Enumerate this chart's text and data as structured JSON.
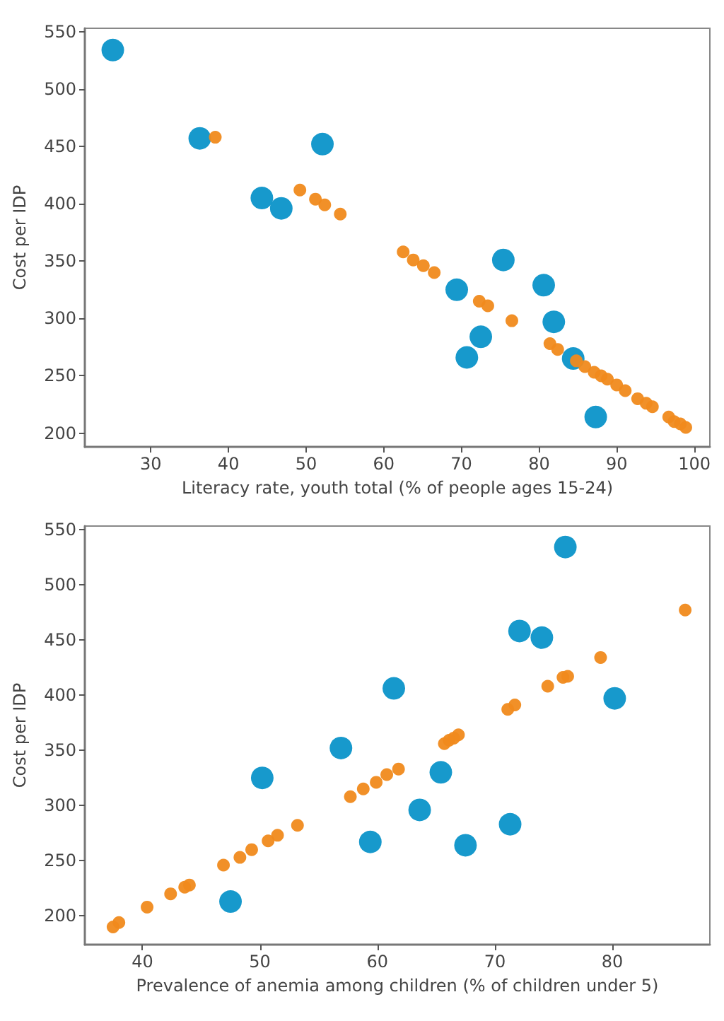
{
  "chart_data": [
    {
      "type": "scatter",
      "xlabel": "Literacy rate, youth total (% of people ages 15-24)",
      "ylabel": "Cost per IDP",
      "xlim": [
        21.5,
        102
      ],
      "ylim": [
        188,
        553
      ],
      "xticks": [
        30,
        40,
        50,
        60,
        70,
        80,
        90,
        100
      ],
      "yticks": [
        200,
        250,
        300,
        350,
        400,
        450,
        500,
        550
      ],
      "marker": "circle",
      "series": [
        {
          "color": "#0b93c9",
          "x": [
            25.1,
            36.3,
            52.1,
            44.3,
            46.8,
            69.4,
            75.4,
            80.6,
            81.9,
            72.5,
            70.7,
            84.4,
            87.3
          ],
          "values": [
            534,
            457,
            452,
            405,
            396,
            325,
            351,
            329,
            297,
            284,
            266,
            265,
            214
          ]
        },
        {
          "color": "#f08a1c",
          "x": [
            38.3,
            49.2,
            51.2,
            52.4,
            54.4,
            62.5,
            63.8,
            65.1,
            66.5,
            72.3,
            73.4,
            76.5,
            81.4,
            82.4,
            84.8,
            85.9,
            87.1,
            88.0,
            88.8,
            90.0,
            91.1,
            92.7,
            93.8,
            94.6,
            96.7,
            97.4,
            98.2,
            98.9
          ],
          "values": [
            458,
            412,
            404,
            399,
            391,
            358,
            351,
            346,
            340,
            315,
            311,
            298,
            278,
            273,
            263,
            258,
            253,
            250,
            247,
            242,
            237,
            230,
            226,
            223,
            214,
            210,
            208,
            205
          ]
        }
      ]
    },
    {
      "type": "scatter",
      "xlabel": "Prevalence of anemia among children (% of children under 5)",
      "ylabel": "Cost per IDP",
      "xlim": [
        35.1,
        88.3
      ],
      "ylim": [
        174,
        553
      ],
      "xticks": [
        40,
        50,
        60,
        70,
        80
      ],
      "yticks": [
        200,
        250,
        300,
        350,
        400,
        450,
        500,
        550
      ],
      "marker": "circle",
      "series": [
        {
          "color": "#0b93c9",
          "x": [
            76.0,
            72.1,
            74.0,
            61.4,
            80.2,
            56.9,
            50.2,
            65.4,
            63.6,
            59.4,
            67.5,
            71.3,
            47.5
          ],
          "values": [
            534,
            458,
            452,
            406,
            397,
            352,
            325,
            330,
            296,
            267,
            264,
            283,
            213
          ]
        },
        {
          "color": "#f08a1c",
          "x": [
            86.2,
            79.0,
            76.2,
            75.8,
            74.5,
            71.7,
            71.1,
            66.9,
            66.5,
            66.1,
            65.7,
            61.8,
            60.8,
            59.9,
            58.8,
            57.7,
            53.2,
            51.5,
            50.7,
            49.3,
            48.3,
            46.9,
            44.0,
            43.6,
            42.4,
            40.4,
            38.0,
            37.5
          ],
          "values": [
            477,
            434,
            417,
            416,
            408,
            391,
            387,
            364,
            361,
            359,
            356,
            333,
            328,
            321,
            315,
            308,
            282,
            273,
            268,
            260,
            253,
            246,
            228,
            226,
            220,
            208,
            194,
            190
          ]
        }
      ]
    }
  ]
}
